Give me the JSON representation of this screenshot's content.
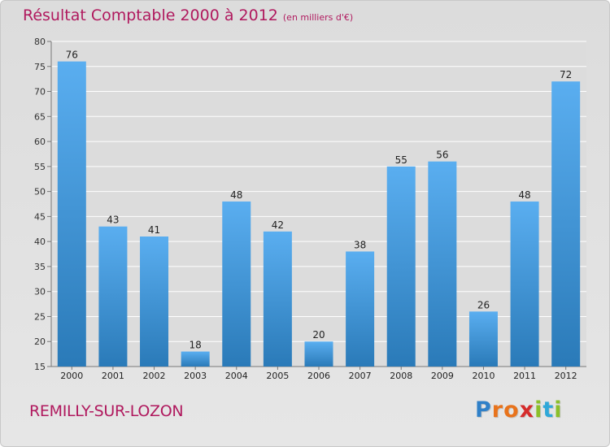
{
  "chart_data": {
    "type": "bar",
    "title": "Résultat Comptable 2000 à 2012",
    "subtitle": "(en milliers d'€)",
    "categories": [
      "2000",
      "2001",
      "2002",
      "2003",
      "2004",
      "2005",
      "2006",
      "2007",
      "2008",
      "2009",
      "2010",
      "2011",
      "2012"
    ],
    "values": [
      76,
      43,
      41,
      18,
      48,
      42,
      20,
      38,
      55,
      56,
      26,
      48,
      72
    ],
    "ylim": [
      15,
      80
    ],
    "yticks": [
      15,
      20,
      25,
      30,
      35,
      40,
      45,
      50,
      55,
      60,
      65,
      70,
      75,
      80
    ],
    "grid": true,
    "xlabel": "",
    "ylabel": ""
  },
  "commune": "REMILLY-SUR-LOZON",
  "logo": {
    "letters": [
      "P",
      "r",
      "o",
      "x",
      "i",
      "t",
      "i"
    ],
    "colors": [
      "#2f80c8",
      "#e8731c",
      "#e8731c",
      "#d52b2b",
      "#8bbf2a",
      "#2fa8d8",
      "#8bbf2a"
    ]
  },
  "colors": {
    "bar_light": "#5aaef0",
    "bar_dark": "#2a7ab8",
    "title": "#b0195e",
    "grid": "#ffffff",
    "plot_bg": "#dcdcdc"
  }
}
